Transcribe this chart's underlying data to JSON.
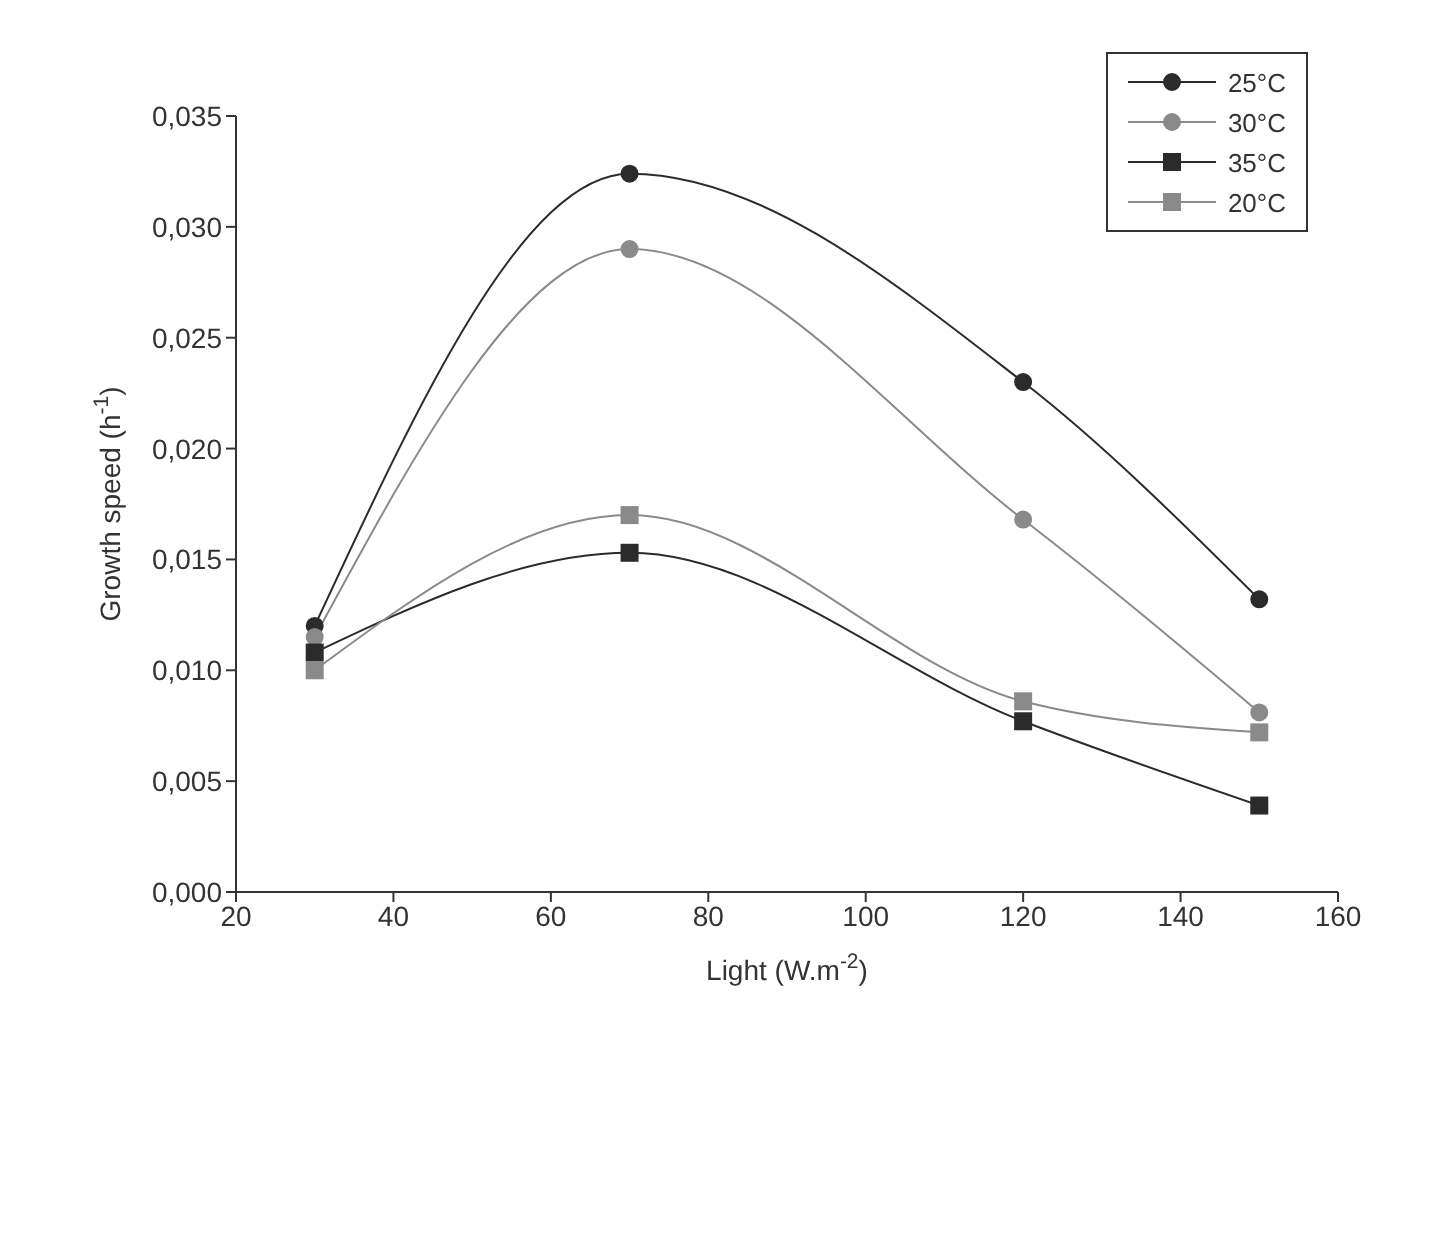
{
  "chart_data": {
    "type": "line",
    "xlabel": "Light (W.m$^{-2}$)",
    "ylabel": "Growth speed (h$^{-1}$)",
    "x": [
      30,
      70,
      120,
      150
    ],
    "series": [
      {
        "name": "25°C",
        "color": "#2b2b2b",
        "marker": "circle",
        "values": [
          0.012,
          0.0324,
          0.023,
          0.0132
        ]
      },
      {
        "name": "30°C",
        "color": "#8a8a8a",
        "marker": "circle",
        "values": [
          0.0115,
          0.029,
          0.0168,
          0.0081
        ]
      },
      {
        "name": "35°C",
        "color": "#2b2b2b",
        "marker": "square",
        "values": [
          0.0108,
          0.0153,
          0.0077,
          0.0039
        ]
      },
      {
        "name": "20°C",
        "color": "#8a8a8a",
        "marker": "square",
        "values": [
          0.01,
          0.017,
          0.0086,
          0.0072
        ]
      }
    ],
    "xlim": [
      20,
      160
    ],
    "xticks": [
      20,
      40,
      60,
      80,
      100,
      120,
      140,
      160
    ],
    "ylim": [
      0,
      0.035
    ],
    "yticks": [
      {
        "value": 0,
        "label": "0,000"
      },
      {
        "value": 0.005,
        "label": "0,005"
      },
      {
        "value": 0.01,
        "label": "0,010"
      },
      {
        "value": 0.015,
        "label": "0,015"
      },
      {
        "value": 0.02,
        "label": "0,020"
      },
      {
        "value": 0.025,
        "label": "0,025"
      },
      {
        "value": 0.03,
        "label": "0,030"
      },
      {
        "value": 0.035,
        "label": "0,035"
      }
    ],
    "legend": "top right",
    "line_style": "solid"
  }
}
